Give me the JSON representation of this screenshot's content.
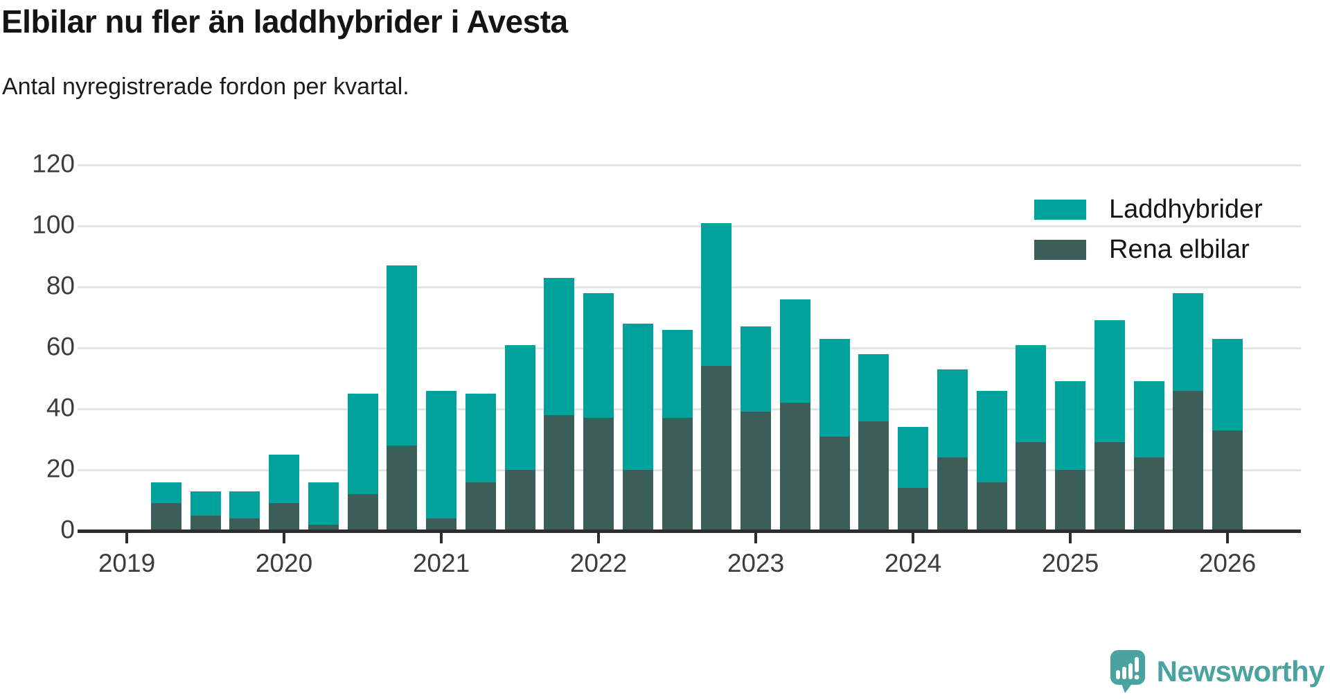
{
  "header": {
    "title": "Elbilar nu fler än laddhybrider i Avesta",
    "subtitle": "Antal nyregistrerade fordon per kvartal."
  },
  "legend": [
    {
      "label": "Laddhybrider",
      "color": "#00a29b"
    },
    {
      "label": "Rena elbilar",
      "color": "#3b5e59"
    }
  ],
  "footer": {
    "brand": "Newsworthy",
    "brand_color": "#4ba3a0"
  },
  "colors": {
    "laddhybrider": "#00a29b",
    "rena_elbilar": "#3b5e59",
    "axis": "#2d2d2d",
    "gridline": "#e4e4e4",
    "tick_text": "#3c3c3c"
  },
  "chart_data": {
    "type": "bar",
    "stacked": true,
    "title": "Elbilar nu fler än laddhybrider i Avesta",
    "subtitle": "Antal nyregistrerade fordon per kvartal.",
    "ylim": [
      0,
      120
    ],
    "y_ticks": [
      0,
      20,
      40,
      60,
      80,
      100,
      120
    ],
    "x_tick_labels": [
      "2019",
      "2020",
      "2021",
      "2022",
      "2023",
      "2024",
      "2025",
      "2026"
    ],
    "grid": true,
    "legend_position": "top-right",
    "categories": [
      "2019Q2",
      "2019Q3",
      "2019Q4",
      "2020Q1",
      "2020Q2",
      "2020Q3",
      "2020Q4",
      "2021Q1",
      "2021Q2",
      "2021Q3",
      "2021Q4",
      "2022Q1",
      "2022Q2",
      "2022Q3",
      "2022Q4",
      "2023Q1",
      "2023Q2",
      "2023Q3",
      "2023Q4",
      "2024Q1",
      "2024Q2",
      "2024Q3",
      "2024Q4",
      "2025Q1",
      "2025Q2",
      "2025Q3",
      "2025Q4",
      "2026Q1"
    ],
    "series": [
      {
        "name": "Rena elbilar",
        "color": "#3b5e59",
        "values": [
          9,
          5,
          4,
          9,
          2,
          12,
          28,
          4,
          16,
          20,
          38,
          37,
          20,
          37,
          54,
          39,
          42,
          31,
          36,
          14,
          24,
          16,
          29,
          20,
          29,
          24,
          46,
          33
        ]
      },
      {
        "name": "Laddhybrider",
        "color": "#00a29b",
        "values": [
          7,
          8,
          9,
          16,
          14,
          33,
          59,
          42,
          29,
          41,
          45,
          41,
          48,
          29,
          47,
          28,
          34,
          32,
          22,
          20,
          29,
          30,
          32,
          29,
          40,
          25,
          32,
          30
        ]
      }
    ],
    "totals": [
      16,
      13,
      13,
      25,
      16,
      45,
      87,
      46,
      45,
      61,
      83,
      78,
      68,
      66,
      101,
      67,
      76,
      63,
      58,
      34,
      53,
      46,
      61,
      49,
      69,
      49,
      78,
      63
    ]
  }
}
